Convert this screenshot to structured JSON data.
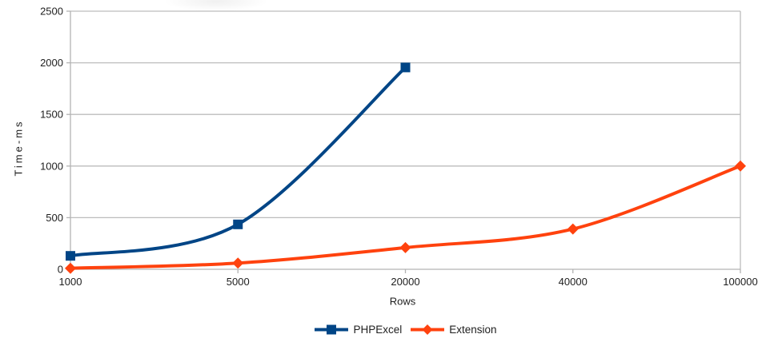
{
  "chart_data": {
    "type": "line",
    "xlabel": "Rows",
    "ylabel": "Time-ms",
    "categories": [
      "1000",
      "5000",
      "20000",
      "40000",
      "100000"
    ],
    "series": [
      {
        "name": "PHPExcel",
        "color": "#004586",
        "marker": "square",
        "values": [
          130,
          435,
          1955,
          null,
          null
        ]
      },
      {
        "name": "Extension",
        "color": "#FF420E",
        "marker": "diamond",
        "values": [
          10,
          60,
          210,
          390,
          1000
        ]
      }
    ],
    "ylim": [
      0,
      2500
    ],
    "yticks": [
      0,
      500,
      1000,
      1500,
      2000,
      2500
    ],
    "grid": "horizontal",
    "smooth": true,
    "legend_position": "bottom",
    "axis_color": "#b3b3b3",
    "grid_color": "#bcbcbc",
    "text_color": "#1e1e1e"
  }
}
